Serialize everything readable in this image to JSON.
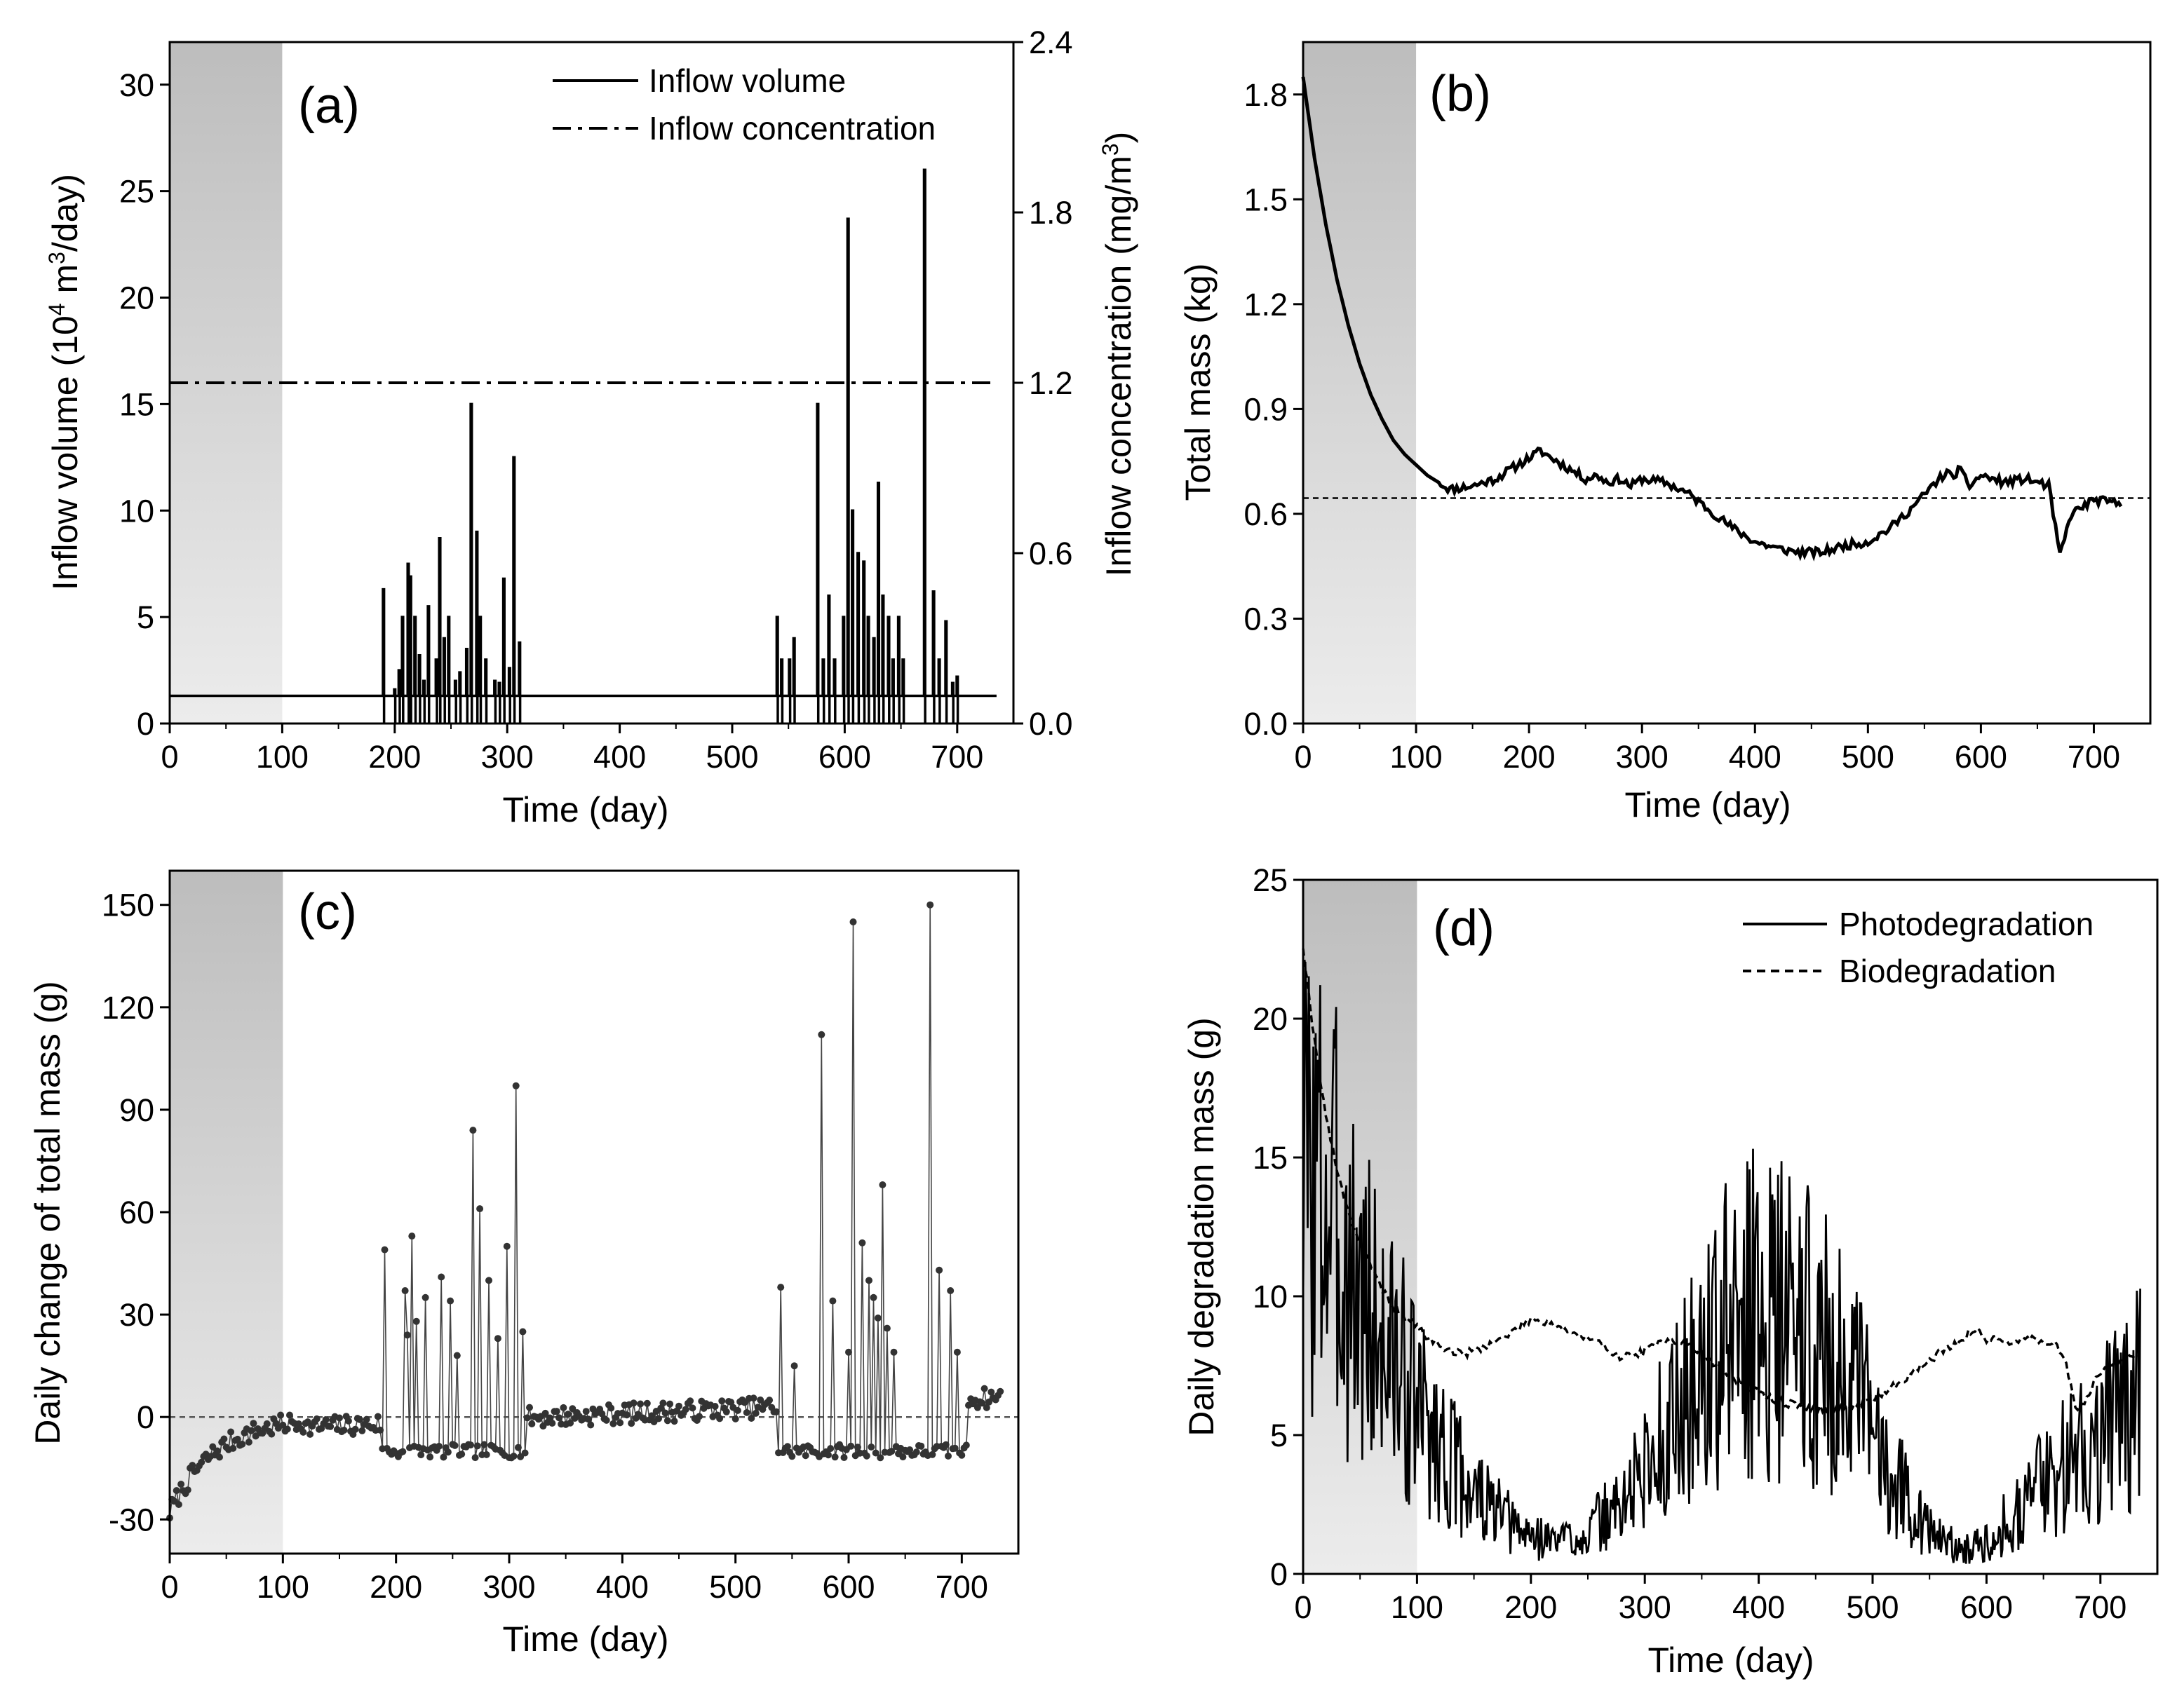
{
  "colors": {
    "line": "#000000",
    "shade_top": "#bdbdbd",
    "shade_bottom": "#ececec",
    "marker": "#333333"
  },
  "chart_data": [
    {
      "type": "line",
      "panel_label": "(a)",
      "xlabel": "Time (day)",
      "ylabel": "Inflow volume (10⁴ m³/day)",
      "ylabel_parts": [
        "Inflow volume (10",
        "4",
        " m",
        "3",
        "/day)"
      ],
      "y2label": "Inflow concentration (mg/m³)",
      "y2label_parts": [
        "Inflow concentration (mg/m",
        "3",
        ")"
      ],
      "xlim": [
        0,
        750
      ],
      "ylim": [
        0,
        32
      ],
      "y2lim": [
        0,
        2.4
      ],
      "xticks": [
        0,
        100,
        200,
        300,
        400,
        500,
        600,
        700
      ],
      "yticks": [
        0,
        5,
        10,
        15,
        20,
        25,
        30
      ],
      "y2ticks": [
        "0.0",
        "0.6",
        "1.2",
        "1.8",
        "2.4"
      ],
      "shaded_x_range": [
        0,
        100
      ],
      "legend_position": "top-right",
      "series": [
        {
          "name": "Inflow volume",
          "axis": "left",
          "style": "solid",
          "baseline": 1.3,
          "x_range": [
            0,
            735
          ],
          "events": [
            [
              190,
              6.3
            ],
            [
              200,
              1.6
            ],
            [
              204,
              2.5
            ],
            [
              207,
              5.0
            ],
            [
              212,
              7.5
            ],
            [
              214,
              6.9
            ],
            [
              218,
              5.0
            ],
            [
              222,
              3.2
            ],
            [
              226,
              2.0
            ],
            [
              230,
              5.5
            ],
            [
              237,
              3.0
            ],
            [
              240,
              8.7
            ],
            [
              244,
              4.0
            ],
            [
              248,
              5.0
            ],
            [
              254,
              2.0
            ],
            [
              258,
              2.4
            ],
            [
              264,
              3.5
            ],
            [
              268,
              15.0
            ],
            [
              273,
              9.0
            ],
            [
              276,
              5.0
            ],
            [
              281,
              3.0
            ],
            [
              289,
              2.0
            ],
            [
              293,
              1.9
            ],
            [
              297,
              6.8
            ],
            [
              302,
              2.6
            ],
            [
              306,
              12.5
            ],
            [
              311,
              3.8
            ],
            [
              540,
              5.0
            ],
            [
              544,
              3.0
            ],
            [
              551,
              3.0
            ],
            [
              555,
              4.0
            ],
            [
              576,
              15.0
            ],
            [
              581,
              3.0
            ],
            [
              586,
              6.0
            ],
            [
              591,
              3.0
            ],
            [
              599,
              5.0
            ],
            [
              603,
              23.7
            ],
            [
              607,
              10.0
            ],
            [
              612,
              8.0
            ],
            [
              617,
              7.6
            ],
            [
              621,
              5.0
            ],
            [
              626,
              4.0
            ],
            [
              630,
              11.3
            ],
            [
              634,
              6.0
            ],
            [
              639,
              5.0
            ],
            [
              643,
              3.0
            ],
            [
              648,
              5.0
            ],
            [
              652,
              3.0
            ],
            [
              671,
              26.0
            ],
            [
              679,
              6.2
            ],
            [
              684,
              3.0
            ],
            [
              690,
              4.8
            ],
            [
              696,
              1.9
            ],
            [
              700,
              2.2
            ]
          ]
        },
        {
          "name": "Inflow concentration",
          "axis": "right",
          "style": "dash-dot",
          "x": [
            0,
            735
          ],
          "y": [
            1.2,
            1.2
          ]
        }
      ]
    },
    {
      "type": "line",
      "panel_label": "(b)",
      "xlabel": "Time (day)",
      "ylabel": "Total mass (kg)",
      "xlim": [
        0,
        750
      ],
      "ylim": [
        0,
        1.95
      ],
      "xticks": [
        0,
        100,
        200,
        300,
        400,
        500,
        600,
        700
      ],
      "yticks": [
        "0.0",
        "0.3",
        "0.6",
        "0.9",
        "1.2",
        "1.5",
        "1.8"
      ],
      "shaded_x_range": [
        0,
        100
      ],
      "reference_line": 0.645,
      "series": [
        {
          "name": "",
          "style": "solid",
          "x": [
            0,
            10,
            20,
            30,
            40,
            50,
            60,
            70,
            80,
            90,
            100,
            110,
            120,
            130,
            150,
            170,
            190,
            210,
            220,
            230,
            240,
            250,
            260,
            270,
            280,
            290,
            300,
            320,
            340,
            360,
            380,
            400,
            420,
            440,
            460,
            480,
            500,
            520,
            540,
            560,
            570,
            575,
            580,
            590,
            600,
            620,
            640,
            660,
            670,
            680,
            700,
            720
          ],
          "y": [
            1.85,
            1.62,
            1.43,
            1.27,
            1.14,
            1.03,
            0.94,
            0.87,
            0.81,
            0.77,
            0.74,
            0.71,
            0.69,
            0.67,
            0.68,
            0.7,
            0.74,
            0.78,
            0.76,
            0.74,
            0.72,
            0.7,
            0.71,
            0.69,
            0.7,
            0.68,
            0.7,
            0.69,
            0.66,
            0.61,
            0.56,
            0.52,
            0.5,
            0.49,
            0.49,
            0.51,
            0.52,
            0.56,
            0.62,
            0.69,
            0.72,
            0.7,
            0.73,
            0.68,
            0.71,
            0.69,
            0.7,
            0.68,
            0.48,
            0.6,
            0.64,
            0.63
          ]
        }
      ]
    },
    {
      "type": "scatter",
      "panel_label": "(c)",
      "xlabel": "Time (day)",
      "ylabel": "Daily change of total mass (g)",
      "xlim": [
        0,
        750
      ],
      "ylim": [
        -40,
        160
      ],
      "xticks": [
        0,
        100,
        200,
        300,
        400,
        500,
        600,
        700
      ],
      "yticks": [
        -30,
        0,
        30,
        60,
        90,
        120,
        150
      ],
      "shaded_x_range": [
        0,
        100
      ],
      "reference_line": 0,
      "series": [
        {
          "name": "",
          "style": "line-with-markers",
          "events": [
            [
              190,
              49
            ],
            [
              207,
              37
            ],
            [
              210,
              24
            ],
            [
              214,
              53
            ],
            [
              218,
              28
            ],
            [
              226,
              35
            ],
            [
              240,
              41
            ],
            [
              248,
              34
            ],
            [
              254,
              18
            ],
            [
              268,
              84
            ],
            [
              273,
              61
            ],
            [
              281,
              40
            ],
            [
              289,
              23
            ],
            [
              297,
              50
            ],
            [
              306,
              97
            ],
            [
              311,
              25
            ],
            [
              540,
              38
            ],
            [
              551,
              15
            ],
            [
              576,
              112
            ],
            [
              586,
              34
            ],
            [
              599,
              19
            ],
            [
              603,
              145
            ],
            [
              612,
              51
            ],
            [
              617,
              40
            ],
            [
              621,
              35
            ],
            [
              626,
              29
            ],
            [
              630,
              68
            ],
            [
              634,
              26
            ],
            [
              639,
              19
            ],
            [
              671,
              150
            ],
            [
              679,
              43
            ],
            [
              690,
              37
            ],
            [
              696,
              19
            ]
          ]
        }
      ]
    },
    {
      "type": "line",
      "panel_label": "(d)",
      "xlabel": "Time (day)",
      "ylabel": "Daily degradation mass (g)",
      "xlim": [
        0,
        750
      ],
      "ylim": [
        0,
        25
      ],
      "xticks": [
        0,
        100,
        200,
        300,
        400,
        500,
        600,
        700
      ],
      "yticks": [
        0,
        5,
        10,
        15,
        20,
        25
      ],
      "shaded_x_range": [
        0,
        100
      ],
      "legend_position": "top-right",
      "series": [
        {
          "name": "Photodegradation",
          "style": "solid",
          "x": [
            0,
            25,
            50,
            75,
            100,
            130,
            160,
            190,
            220,
            250,
            280,
            310,
            340,
            370,
            400,
            430,
            460,
            490,
            520,
            550,
            580,
            610,
            640,
            670,
            700,
            735
          ],
          "y": [
            15,
            13,
            10,
            8,
            6,
            4,
            2.5,
            1.5,
            1.2,
            1.5,
            2.5,
            4.5,
            6.5,
            8.5,
            9.5,
            9,
            8,
            6,
            3.5,
            1.5,
            0.8,
            1.5,
            3,
            4,
            5,
            6.5
          ]
        },
        {
          "name": "Biodegradation",
          "style": "dashed",
          "x": [
            0,
            10,
            20,
            30,
            40,
            50,
            60,
            70,
            80,
            90,
            100,
            110,
            120,
            140,
            160,
            180,
            200,
            220,
            240,
            260,
            280,
            300,
            320,
            340,
            360,
            380,
            400,
            420,
            440,
            460,
            480,
            500,
            520,
            540,
            560,
            580,
            590,
            600,
            610,
            620,
            640,
            660,
            670,
            680,
            690,
            700,
            720,
            735
          ],
          "y": [
            22.6,
            19.2,
            16.5,
            14.5,
            13,
            11.9,
            11,
            10.2,
            9.6,
            9.2,
            8.9,
            8.5,
            8.2,
            7.9,
            8.2,
            8.6,
            9.2,
            9.0,
            8.6,
            8.3,
            7.8,
            8.0,
            8.5,
            8.2,
            7.6,
            7.0,
            6.5,
            6.2,
            6.0,
            5.9,
            6.0,
            6.3,
            6.8,
            7.4,
            8.0,
            8.5,
            8.8,
            8.4,
            8.6,
            8.3,
            8.5,
            8.3,
            7.5,
            5.8,
            6.5,
            7.3,
            7.7,
            8.0
          ]
        }
      ]
    }
  ]
}
